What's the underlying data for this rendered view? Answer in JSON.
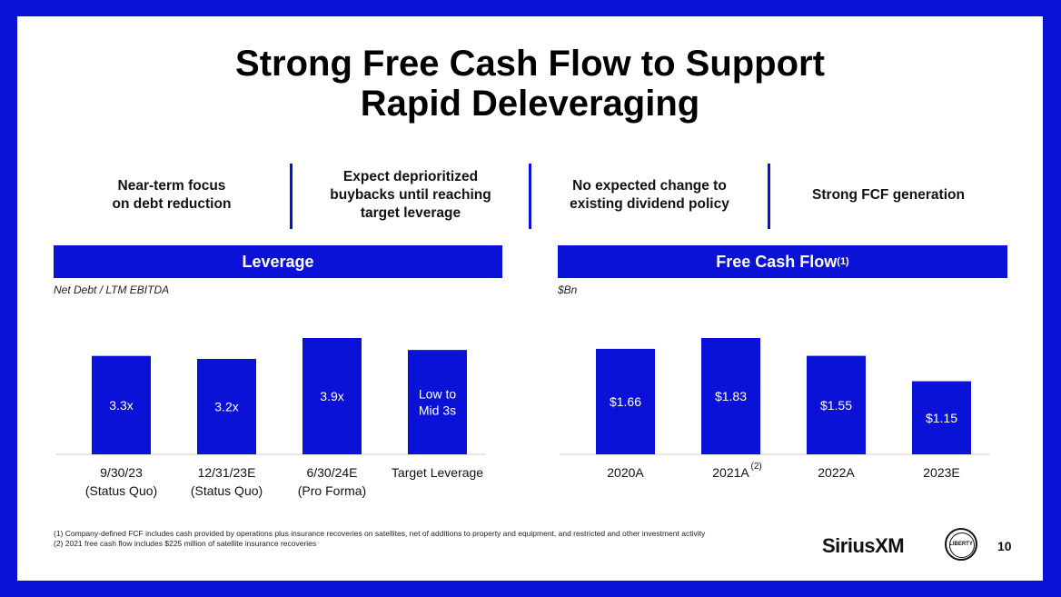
{
  "title_line1": "Strong Free Cash Flow to Support",
  "title_line2": "Rapid Deleveraging",
  "pillars": [
    "Near-term focus\non debt reduction",
    "Expect deprioritized\nbuybacks until reaching\ntarget leverage",
    "No expected change to\nexisting dividend policy",
    "Strong FCF generation"
  ],
  "colors": {
    "accent": "#0b12d8",
    "bar_label": "#ffffff"
  },
  "chart_data": [
    {
      "type": "bar",
      "title": "Leverage",
      "ylabel": "Net Debt / LTM EBITDA",
      "categories": [
        "9/30/23\n(Status Quo)",
        "12/31/23E\n(Status Quo)",
        "6/30/24E\n(Pro Forma)",
        "Target Leverage"
      ],
      "values": [
        3.3,
        3.2,
        3.9,
        3.5
      ],
      "data_labels": [
        "3.3x",
        "3.2x",
        "3.9x",
        "Low to\nMid 3s"
      ],
      "ylim": [
        0,
        3.9
      ],
      "grid": false
    },
    {
      "type": "bar",
      "title": "Free Cash Flow",
      "title_sup": "(1)",
      "ylabel": "$Bn",
      "categories": [
        "2020A",
        "2021A",
        "2022A",
        "2023E"
      ],
      "category_sup": [
        "",
        "(2)",
        "",
        ""
      ],
      "values": [
        1.66,
        1.83,
        1.55,
        1.15
      ],
      "data_labels": [
        "$1.66",
        "$1.83",
        "$1.55",
        "$1.15"
      ],
      "ylim": [
        0,
        1.83
      ],
      "grid": false
    }
  ],
  "footnotes": [
    "(1)   Company-defined FCF includes cash provided by operations plus insurance recoveries on satellites, net of additions to property and equipment, and restricted and other investment activity",
    "(2)  2021 free cash flow includes $225 million of satellite insurance recoveries"
  ],
  "logo_text": "SiriusXM",
  "seal_text": "LIBERTY",
  "page_number": "10"
}
